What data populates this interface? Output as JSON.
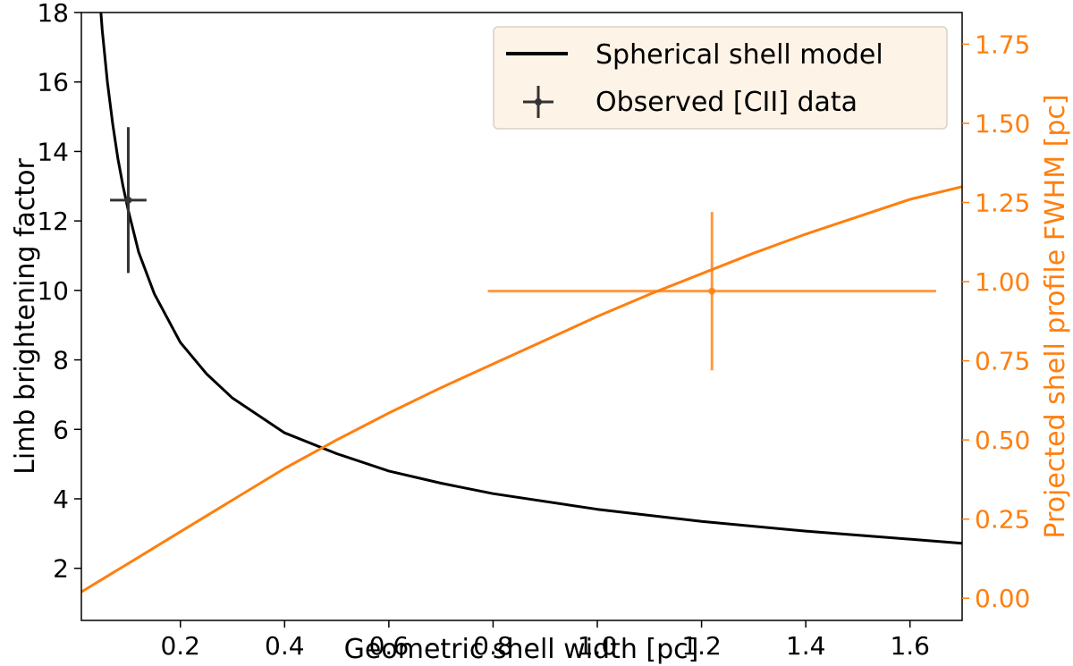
{
  "chart_data": {
    "type": "line",
    "xlabel": "Geometric shell width [pc]",
    "ylabel_left": "Limb brightening factor",
    "ylabel_right": "Projected shell profile FWHM [pc]",
    "xlim": [
      0.01,
      1.7
    ],
    "ylim_left": [
      0.5,
      18
    ],
    "ylim_right": [
      -0.07,
      1.85
    ],
    "x_ticks": [
      0.2,
      0.4,
      0.6,
      0.8,
      1.0,
      1.2,
      1.4,
      1.6
    ],
    "x_tick_labels": [
      "0.2",
      "0.4",
      "0.6",
      "0.8",
      "1.0",
      "1.2",
      "1.4",
      "1.6"
    ],
    "y_left_ticks": [
      2,
      4,
      6,
      8,
      10,
      12,
      14,
      16,
      18
    ],
    "y_left_tick_labels": [
      "2",
      "4",
      "6",
      "8",
      "10",
      "12",
      "14",
      "16",
      "18"
    ],
    "y_right_ticks": [
      0.0,
      0.25,
      0.5,
      0.75,
      1.0,
      1.25,
      1.5,
      1.75
    ],
    "y_right_tick_labels": [
      "0.00",
      "0.25",
      "0.50",
      "0.75",
      "1.00",
      "1.25",
      "1.50",
      "1.75"
    ],
    "colors": {
      "model": "#000000",
      "observed": "#333333",
      "fwhm": "#ff7f0e"
    },
    "legend": {
      "position": "upper-right",
      "entries": [
        "Spherical shell model",
        "Observed [CII] data"
      ]
    },
    "series": [
      {
        "name": "Spherical shell model",
        "axis": "left",
        "x": [
          0.04,
          0.05,
          0.06,
          0.07,
          0.08,
          0.09,
          0.1,
          0.12,
          0.15,
          0.2,
          0.25,
          0.3,
          0.4,
          0.5,
          0.6,
          0.7,
          0.8,
          1.0,
          1.2,
          1.4,
          1.7
        ],
        "y": [
          19.5,
          17.5,
          16.0,
          14.8,
          13.8,
          13.0,
          12.3,
          11.1,
          9.9,
          8.5,
          7.6,
          6.9,
          5.9,
          5.3,
          4.8,
          4.45,
          4.15,
          3.7,
          3.35,
          3.07,
          2.72
        ]
      },
      {
        "name": "",
        "axis": "right",
        "x": [
          0.01,
          0.1,
          0.2,
          0.3,
          0.4,
          0.5,
          0.6,
          0.7,
          0.8,
          0.9,
          1.0,
          1.1,
          1.2,
          1.3,
          1.4,
          1.5,
          1.6,
          1.7
        ],
        "y": [
          0.02,
          0.11,
          0.21,
          0.31,
          0.41,
          0.5,
          0.585,
          0.665,
          0.74,
          0.815,
          0.89,
          0.96,
          1.025,
          1.09,
          1.15,
          1.205,
          1.26,
          1.3
        ]
      }
    ],
    "errorbars": [
      {
        "name": "Observed [CII] data",
        "axis": "left",
        "x": 0.1,
        "y": 12.6,
        "xerr": 0.035,
        "yerr": 2.1
      },
      {
        "name": "",
        "axis": "right",
        "x": 1.22,
        "y": 0.97,
        "xerr": 0.43,
        "yerr": 0.25
      }
    ]
  }
}
